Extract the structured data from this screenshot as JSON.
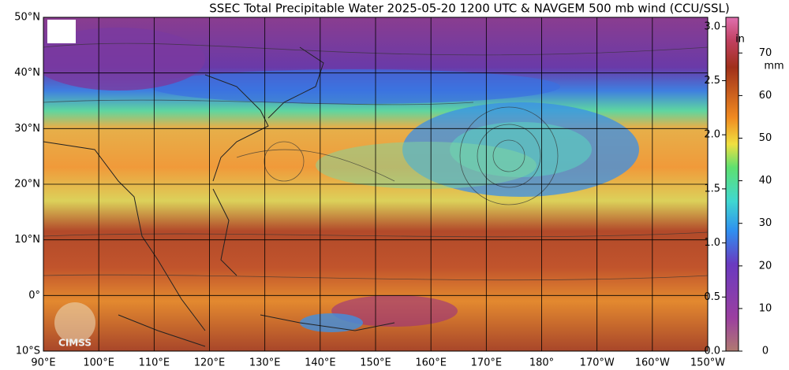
{
  "header": {
    "title": "SSEC Total Precipitable Water  2025-05-20 1200 UTC & NAVGEM 500 mb wind (CCU/SSL)"
  },
  "map": {
    "lat_labels": [
      "50°N",
      "40°N",
      "30°N",
      "20°N",
      "10°N",
      "0°",
      "10°S"
    ],
    "lon_labels": [
      "90°E",
      "100°E",
      "110°E",
      "120°E",
      "130°E",
      "140°E",
      "150°E",
      "160°E",
      "170°E",
      "180°",
      "170°W",
      "160°W",
      "150°W"
    ],
    "logo": "CIMSS"
  },
  "colorbar": {
    "unit_in": "in",
    "unit_mm": "mm",
    "in_ticks": [
      "0.0",
      "0.5",
      "1.0",
      "1.5",
      "2.0",
      "2.5",
      "3.0"
    ],
    "mm_ticks": [
      "0",
      "10",
      "20",
      "30",
      "40",
      "50",
      "60",
      "70"
    ]
  }
}
